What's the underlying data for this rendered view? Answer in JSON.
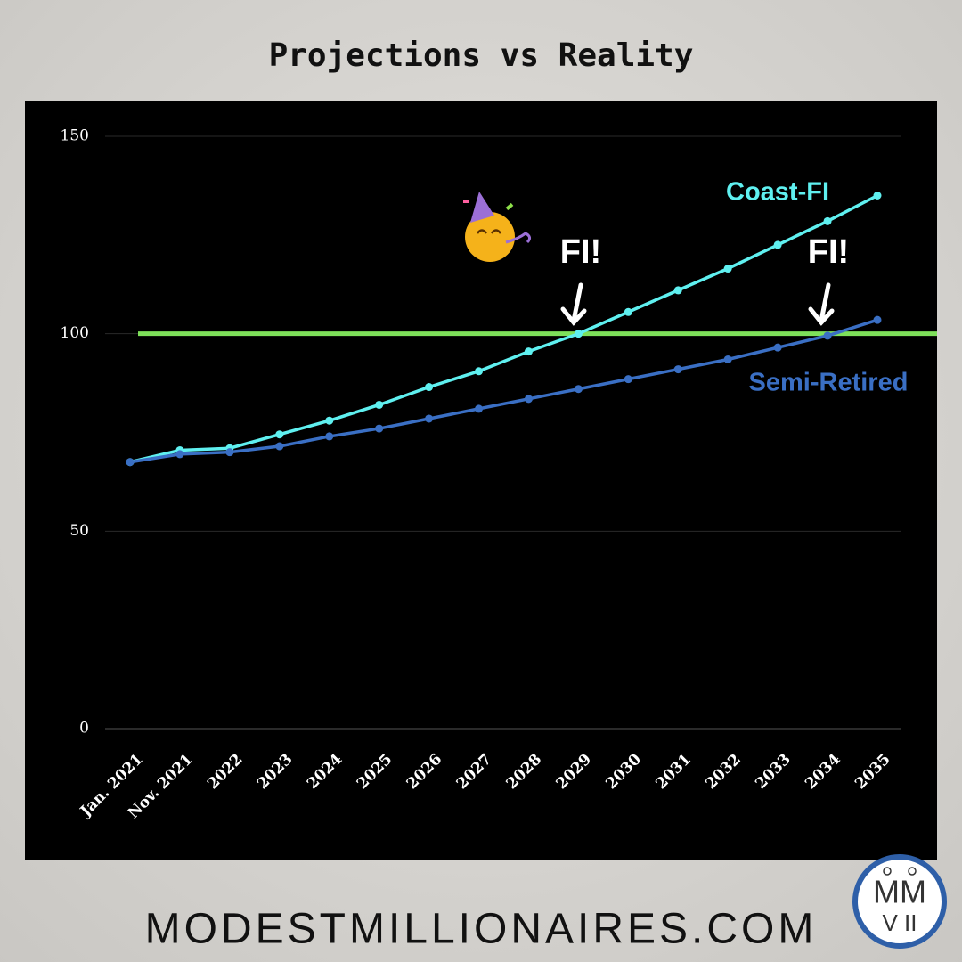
{
  "chart_data": {
    "type": "line",
    "title": "Projections vs Reality",
    "categories": [
      "Jan. 2021",
      "Nov. 2021",
      "2022",
      "2023",
      "2024",
      "2025",
      "2026",
      "2027",
      "2028",
      "2029",
      "2030",
      "2031",
      "2032",
      "2033",
      "2034",
      "2035"
    ],
    "series": [
      {
        "name": "Coast-FI",
        "color": "#5ff0f0",
        "values": [
          67.5,
          70.5,
          71,
          74.5,
          78,
          82,
          86.5,
          90.5,
          95.5,
          100,
          105.5,
          111,
          116.5,
          122.5,
          128.5,
          135
        ]
      },
      {
        "name": "Semi-Retired",
        "color": "#3a6fc4",
        "values": [
          67.5,
          69.5,
          70,
          71.5,
          74,
          76,
          78.5,
          81,
          83.5,
          86,
          88.5,
          91,
          93.5,
          96.5,
          99.5,
          103.5
        ]
      }
    ],
    "reference_line": {
      "value": 100,
      "color": "#7ee05a"
    },
    "annotations": [
      "FI!",
      "FI!"
    ],
    "ylim": [
      0,
      150
    ],
    "yticks": [
      0,
      50,
      100,
      150
    ],
    "grid": true
  },
  "footer": {
    "site": "MODESTMILLIONAIRES.COM",
    "logo": [
      "MM",
      "V II"
    ]
  }
}
